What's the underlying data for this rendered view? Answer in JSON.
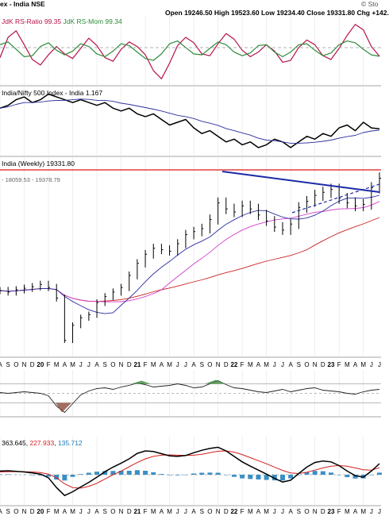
{
  "header": {
    "title": "ex - India NSE",
    "ohlc": "Open 19246.50  High 19523.60  Low 19234.40  Close 19331.80  Chg +142.",
    "watermark": "© Sto"
  },
  "rrg_panel": {
    "rs_ratio_label": "JdK RS-Ratio 99.35",
    "rs_mom_label": "JdK RS-Mom 99.34",
    "colors": {
      "ratio": "#b5124a",
      "mom": "#2e8b3a"
    }
  },
  "relative_panel": {
    "label": "India/Nifty 500 Index - India 1.167"
  },
  "price_panel": {
    "label": "India (Weekly) 19331.80",
    "ma_label": "- 18059.53 - 19378.79",
    "resistance_color": "#e01818",
    "trendline_color": "#1c2aa8"
  },
  "time_axis": {
    "labels": [
      "A",
      "S",
      "O",
      "N",
      "D",
      "20",
      "F",
      "M",
      "A",
      "M",
      "J",
      "J",
      "A",
      "S",
      "O",
      "N",
      "D",
      "21",
      "F",
      "M",
      "A",
      "M",
      "J",
      "J",
      "A",
      "S",
      "O",
      "N",
      "D",
      "22",
      "F",
      "M",
      "A",
      "M",
      "J",
      "J",
      "A",
      "S",
      "O",
      "N",
      "D",
      "23",
      "F",
      "M",
      "A",
      "M",
      "J",
      "J"
    ]
  },
  "macd_panel": {
    "label_values": [
      "363.645",
      "227.933",
      "135.712"
    ],
    "colors": [
      "#000000",
      "#d41f1f",
      "#1f77b4"
    ]
  },
  "chart_data": [
    {
      "type": "line",
      "panel": "RRG",
      "series": [
        {
          "name": "JdK RS-Ratio",
          "values": [
            99.2,
            101.4,
            102.1,
            100.6,
            99.0,
            98.4,
            99.5,
            100.4,
            99.6,
            99.1,
            100.2,
            101.3,
            100.5,
            99.2,
            98.8,
            100.1,
            100.9,
            100.4,
            99.5,
            97.8,
            96.9,
            98.6,
            100.5,
            101.4,
            100.8,
            99.6,
            99.4,
            100.7,
            101.8,
            101.2,
            100.0,
            99.3,
            99.8,
            100.6,
            99.9,
            98.7,
            98.9,
            100.3,
            101.1,
            100.6,
            99.4,
            99.0,
            100.2,
            101.6,
            102.8,
            102.2,
            100.4,
            99.35
          ]
        },
        {
          "name": "JdK RS-Mom",
          "values": [
            100.6,
            100.9,
            100.1,
            99.3,
            99.4,
            100.4,
            100.8,
            100.0,
            99.5,
            99.9,
            100.7,
            100.4,
            99.6,
            99.3,
            99.9,
            100.7,
            100.5,
            99.8,
            99.1,
            98.9,
            99.6,
            100.7,
            101.0,
            100.3,
            99.6,
            99.5,
            100.2,
            100.9,
            100.6,
            99.8,
            99.4,
            99.7,
            100.5,
            100.6,
            99.8,
            99.3,
            99.8,
            100.6,
            100.7,
            100.0,
            99.4,
            99.7,
            100.6,
            101.0,
            100.8,
            100.1,
            99.5,
            99.34
          ]
        }
      ]
    },
    {
      "type": "line",
      "panel": "Relative strength",
      "series": [
        {
          "name": "India/Nifty 500 Index - India",
          "values": [
            1.24,
            1.25,
            1.27,
            1.28,
            1.26,
            1.27,
            1.29,
            1.28,
            1.27,
            1.26,
            1.27,
            1.26,
            1.25,
            1.26,
            1.24,
            1.23,
            1.24,
            1.22,
            1.21,
            1.22,
            1.2,
            1.18,
            1.19,
            1.2,
            1.17,
            1.15,
            1.16,
            1.14,
            1.12,
            1.13,
            1.11,
            1.12,
            1.1,
            1.11,
            1.13,
            1.12,
            1.1,
            1.12,
            1.14,
            1.13,
            1.15,
            1.14,
            1.17,
            1.18,
            1.16,
            1.19,
            1.17,
            1.167
          ]
        }
      ]
    },
    {
      "type": "line",
      "panel": "Price (weekly)",
      "series": [
        {
          "values": [
            11900,
            11800,
            11950,
            12050,
            12150,
            12300,
            12100,
            11400,
            8600,
            9600,
            10100,
            10300,
            11100,
            11500,
            11800,
            12100,
            12900,
            13700,
            14300,
            14700,
            14600,
            14500,
            15000,
            15600,
            15800,
            16000,
            16600,
            17700,
            17300,
            17100,
            17500,
            17300,
            16900,
            16500,
            16100,
            15900,
            16300,
            17400,
            17800,
            18200,
            18400,
            18600,
            18000,
            17700,
            17500,
            17600,
            18700,
            19331.8
          ]
        }
      ]
    },
    {
      "type": "line",
      "panel": "Oscillator",
      "series": [
        {
          "values": [
            0.1,
            0.0,
            0.1,
            0.2,
            0.1,
            0.0,
            -0.3,
            -1.6,
            -2.4,
            -1.3,
            -0.2,
            0.3,
            0.6,
            0.7,
            0.5,
            0.8,
            1.0,
            1.3,
            1.1,
            0.8,
            0.9,
            1.0,
            1.2,
            1.0,
            0.7,
            0.8,
            1.2,
            1.6,
            1.1,
            0.7,
            0.6,
            0.4,
            0.2,
            0.1,
            0.3,
            0.5,
            0.2,
            0.4,
            0.6,
            0.7,
            0.4,
            0.3,
            0.2,
            0.0,
            -0.1,
            0.2,
            0.4,
            0.5
          ]
        }
      ]
    },
    {
      "type": "line",
      "panel": "MACD",
      "series": [
        {
          "values": [
            120,
            130,
            110,
            90,
            60,
            20,
            -100,
            -420,
            -680,
            -560,
            -400,
            -250,
            -80,
            100,
            250,
            380,
            520,
            700,
            780,
            760,
            690,
            620,
            600,
            630,
            720,
            800,
            860,
            900,
            780,
            600,
            420,
            280,
            150,
            20,
            -120,
            -240,
            -180,
            40,
            250,
            400,
            450,
            420,
            300,
            120,
            -30,
            -80,
            120,
            363.645
          ]
        },
        {
          "values": [
            90,
            100,
            105,
            100,
            90,
            70,
            20,
            -100,
            -300,
            -420,
            -440,
            -380,
            -280,
            -140,
            0,
            120,
            260,
            400,
            520,
            600,
            640,
            650,
            640,
            630,
            640,
            670,
            720,
            770,
            780,
            740,
            660,
            560,
            460,
            360,
            250,
            140,
            60,
            40,
            80,
            150,
            220,
            280,
            300,
            280,
            220,
            160,
            150,
            227.933
          ]
        }
      ]
    }
  ]
}
